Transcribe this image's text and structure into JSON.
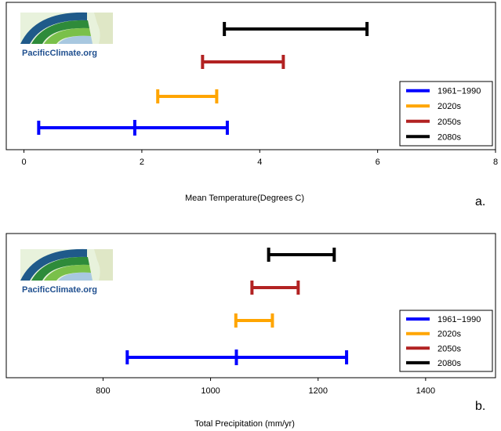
{
  "chart_data": [
    {
      "type": "interval",
      "panel_label": "a.",
      "xlabel": "Mean Temperature(Degrees C)",
      "xlim": [
        -0.3,
        8
      ],
      "xticks": [
        0,
        2,
        4,
        6,
        8
      ],
      "series": [
        {
          "name": "1961−1990",
          "color": "#0000ff",
          "low": 0.25,
          "high": 3.45,
          "mid": 1.88
        },
        {
          "name": "2020s",
          "color": "#ffa500",
          "low": 2.27,
          "high": 3.27
        },
        {
          "name": "2050s",
          "color": "#b22222",
          "low": 3.03,
          "high": 4.4
        },
        {
          "name": "2080s",
          "color": "#000000",
          "low": 3.4,
          "high": 5.82
        }
      ],
      "legend_position": "bottom-right"
    },
    {
      "type": "interval",
      "panel_label": "b.",
      "xlabel": "Total Precipitation (mm/yr)",
      "xlim": [
        620,
        1530
      ],
      "xticks": [
        800,
        1000,
        1200,
        1400
      ],
      "series": [
        {
          "name": "1961−1990",
          "color": "#0000ff",
          "low": 845,
          "high": 1253,
          "mid": 1048
        },
        {
          "name": "2020s",
          "color": "#ffa500",
          "low": 1047,
          "high": 1115
        },
        {
          "name": "2050s",
          "color": "#b22222",
          "low": 1077,
          "high": 1163
        },
        {
          "name": "2080s",
          "color": "#000000",
          "low": 1108,
          "high": 1230
        }
      ],
      "legend_position": "bottom-right"
    }
  ],
  "logo": {
    "text": "PacificClimate.org"
  }
}
